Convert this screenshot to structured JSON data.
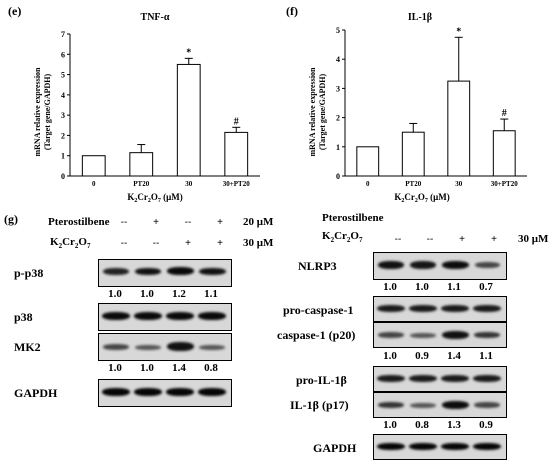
{
  "panel_e_label": "(e)",
  "panel_f_label": "(f)",
  "panel_g_label": "(g)",
  "chart_data": [
    {
      "type": "bar",
      "title": "TNF-α",
      "ylabel": "mRNA relative expression (Target gene/GAPDH)",
      "ylabel_line1": "mRNA relative expression",
      "ylabel_line2": "(Target gene/GAPDH)",
      "xlabel": "K2Cr2O7 (μM)",
      "categories": [
        "0",
        "PT20",
        "30",
        "30+PT20"
      ],
      "values": [
        1.0,
        1.15,
        5.5,
        2.15
      ],
      "errors": [
        0.0,
        0.4,
        0.3,
        0.25
      ],
      "significance": [
        "",
        "",
        "*",
        "#"
      ],
      "ylim": [
        0,
        7
      ],
      "yticks": [
        "0",
        "1",
        "2",
        "3",
        "4",
        "5",
        "6",
        "7"
      ]
    },
    {
      "type": "bar",
      "title": "IL-1β",
      "ylabel": "mRNA relative expression (Target gene/GAPDH)",
      "ylabel_line1": "mRNA relative expression",
      "ylabel_line2": "(Target gene/GAPDH)",
      "xlabel": "K2Cr2O7 (μM)",
      "categories": [
        "0",
        "PT20",
        "30",
        "30+PT20"
      ],
      "values": [
        1.0,
        1.5,
        3.25,
        1.55
      ],
      "errors": [
        0.0,
        0.3,
        1.5,
        0.4
      ],
      "significance": [
        "",
        "",
        "*",
        "#"
      ],
      "ylim": [
        0,
        5
      ],
      "yticks": [
        "0",
        "1",
        "2",
        "3",
        "4",
        "5"
      ]
    }
  ],
  "blots_left": {
    "treat_row1_name": "Pterostilbene",
    "treat_row1_signs": [
      "--",
      "+",
      "--",
      "+"
    ],
    "treat_row1_conc": "20 μM",
    "treat_row2_name": "K2Cr2O7",
    "treat_row2_signs": [
      "--",
      "--",
      "+",
      "+"
    ],
    "treat_row2_conc": "30 μM",
    "p_p38": "p-p38",
    "p_p38_values": [
      "1.0",
      "1.0",
      "1.2",
      "1.1"
    ],
    "p38": "p38",
    "mk2": "MK2",
    "mk2_values": [
      "1.0",
      "1.0",
      "1.4",
      "0.8"
    ],
    "gapdh": "GAPDH"
  },
  "blots_right": {
    "treat_row1_name": "Pterostilbene",
    "treat_row2_name": "K2Cr2O7",
    "treat_row2_signs": [
      "--",
      "--",
      "+",
      "+"
    ],
    "treat_row2_conc": "30 μM",
    "nlrp3": "NLRP3",
    "nlrp3_values": [
      "1.0",
      "1.0",
      "1.1",
      "0.7"
    ],
    "pro_casp1": "pro-caspase-1",
    "casp1": "caspase-1 (p20)",
    "casp1_values": [
      "1.0",
      "0.9",
      "1.4",
      "1.1"
    ],
    "pro_il1b": "pro-IL-1β",
    "il1b": "IL-1β (p17)",
    "il1b_values": [
      "1.0",
      "0.8",
      "1.3",
      "0.9"
    ],
    "gapdh": "GAPDH"
  }
}
